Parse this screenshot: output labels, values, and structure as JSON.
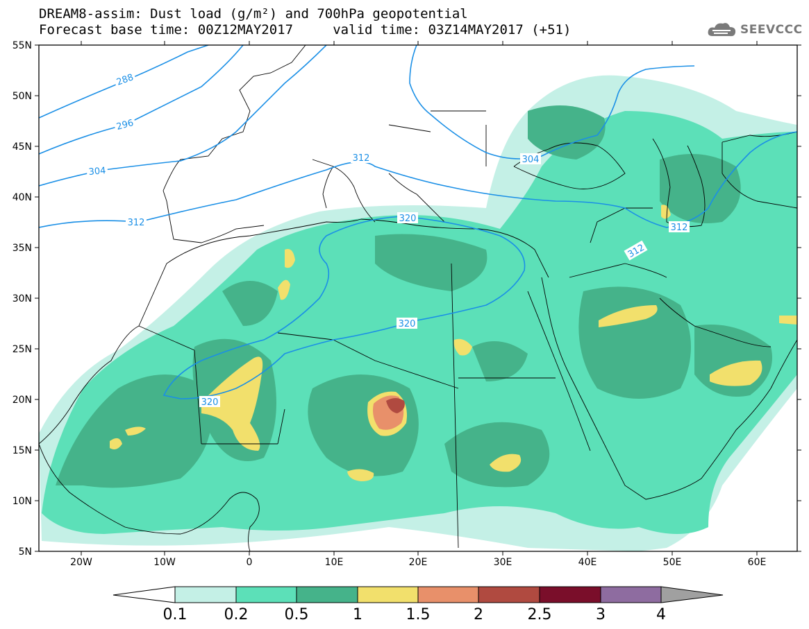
{
  "header": {
    "title_line1": "DREAM8-assim: Dust load (g/m²) and 700hPa geopotential",
    "title_line2": "Forecast base time: 00Z12MAY2017     valid time: 03Z14MAY2017 (+51)",
    "brand": "SEEVCCC",
    "brand_icon": "cloud-logo-icon"
  },
  "map": {
    "lon_labels": [
      "20W",
      "10W",
      "0",
      "10E",
      "20E",
      "30E",
      "40E",
      "50E",
      "60E"
    ],
    "lat_labels": [
      "55N",
      "50N",
      "45N",
      "40N",
      "35N",
      "30N",
      "25N",
      "20N",
      "15N",
      "10N",
      "5N"
    ],
    "contour_labels": [
      "288",
      "296",
      "304",
      "312",
      "320",
      "320",
      "320",
      "312",
      "304",
      "312",
      "312"
    ],
    "field": "Dust load",
    "overlay": "700hPa geopotential"
  },
  "colorbar": {
    "ticks": [
      "0.1",
      "0.2",
      "0.5",
      "1",
      "1.5",
      "2",
      "2.5",
      "3",
      "4"
    ],
    "colors": [
      "#c4f0e6",
      "#5ce0b8",
      "#45b38a",
      "#f2e06c",
      "#e8906a",
      "#b04a40",
      "#7a0e2a",
      "#8e6ca0"
    ],
    "under_color": "#ffffff",
    "over_color": "#a0a0a0"
  },
  "colors": {
    "contour": "#1a8fe6",
    "land_border": "#000000",
    "level1": "#c4f0e6",
    "level2": "#5ce0b8",
    "level3": "#45b38a",
    "level4": "#f2e06c",
    "level5": "#e8906a",
    "level6": "#b04a40"
  }
}
